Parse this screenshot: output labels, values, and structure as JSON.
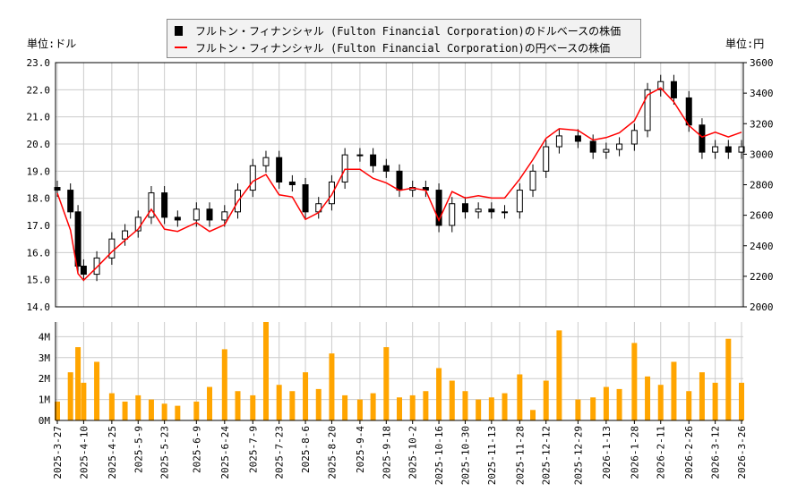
{
  "legend": {
    "usd": "フルトン・フィナンシャル (Fulton Financial Corporation)のドルベースの株価",
    "jpy": "フルトン・フィナンシャル (Fulton Financial Corporation)の円ベースの株価"
  },
  "units": {
    "left": "単位:ドル",
    "right": "単位:円"
  },
  "colors": {
    "candle": "#000000",
    "yen_line": "#ff0000",
    "volume": "#ffa500",
    "grid": "#cccccc"
  },
  "chart_data": [
    {
      "type": "candlestick+line",
      "ylim_left": [
        14,
        23
      ],
      "ylim_right": [
        2000,
        3600
      ],
      "yticks_left": [
        "14.0",
        "15.0",
        "16.0",
        "17.0",
        "18.0",
        "19.0",
        "20.0",
        "21.0",
        "22.0",
        "23.0"
      ],
      "yticks_right": [
        "2000",
        "2200",
        "2400",
        "2600",
        "2800",
        "3000",
        "3200",
        "3400",
        "3600"
      ],
      "grid": true,
      "dates": [
        "2025-3-27",
        "2025-4-3",
        "2025-4-7",
        "2025-4-10",
        "2025-4-17",
        "2025-4-25",
        "2025-5-2",
        "2025-5-9",
        "2025-5-16",
        "2025-5-23",
        "2025-5-30",
        "2025-6-9",
        "2025-6-16",
        "2025-6-24",
        "2025-7-1",
        "2025-7-9",
        "2025-7-16",
        "2025-7-23",
        "2025-7-30",
        "2025-8-6",
        "2025-8-13",
        "2025-8-20",
        "2025-8-27",
        "2025-9-4",
        "2025-9-11",
        "2025-9-18",
        "2025-9-25",
        "2025-10-2",
        "2025-10-9",
        "2025-10-16",
        "2025-10-23",
        "2025-10-30",
        "2025-11-6",
        "2025-11-13",
        "2025-11-20",
        "2025-11-28",
        "2025-12-5",
        "2025-12-12",
        "2025-12-19",
        "2025-12-29",
        "2026-1-6",
        "2026-1-13",
        "2026-1-20",
        "2026-1-28",
        "2026-2-4",
        "2026-2-11",
        "2026-2-18",
        "2026-2-26",
        "2026-3-5",
        "2026-3-12",
        "2026-3-19",
        "2026-3-26"
      ],
      "usd_close": [
        18.3,
        17.5,
        15.5,
        15.2,
        15.8,
        16.5,
        16.8,
        17.3,
        18.2,
        17.3,
        17.2,
        17.6,
        17.2,
        17.5,
        18.3,
        19.2,
        19.5,
        18.6,
        18.5,
        17.5,
        17.8,
        18.6,
        19.6,
        19.6,
        19.2,
        19.0,
        18.3,
        18.4,
        18.3,
        17.0,
        17.8,
        17.5,
        17.6,
        17.5,
        17.5,
        18.3,
        19.0,
        19.9,
        20.3,
        20.1,
        19.7,
        19.8,
        20.0,
        20.5,
        22.0,
        22.3,
        21.7,
        20.7,
        19.7,
        19.9,
        19.7,
        19.9
      ],
      "jpy_close": [
        2745,
        2503,
        2217,
        2174,
        2259,
        2360,
        2436,
        2509,
        2639,
        2509,
        2494,
        2552,
        2494,
        2538,
        2690,
        2822,
        2867,
        2734,
        2720,
        2573,
        2617,
        2734,
        2901,
        2901,
        2842,
        2812,
        2763,
        2778,
        2763,
        2567,
        2755,
        2713,
        2728,
        2713,
        2713,
        2837,
        2964,
        3104,
        3167,
        3156,
        3093,
        3109,
        3140,
        3219,
        3388,
        3434,
        3342,
        3188,
        3113,
        3144,
        3113,
        3144
      ],
      "xticks": [
        "2025-3-27",
        "2025-4-10",
        "2025-4-25",
        "2025-5-9",
        "2025-5-23",
        "2025-6-9",
        "2025-6-24",
        "2025-7-9",
        "2025-7-23",
        "2025-8-6",
        "2025-8-20",
        "2025-9-4",
        "2025-9-18",
        "2025-10-2",
        "2025-10-16",
        "2025-10-30",
        "2025-11-13",
        "2025-11-28",
        "2025-12-12",
        "2025-12-29",
        "2026-1-13",
        "2026-1-28",
        "2026-2-11",
        "2026-2-26",
        "2026-3-12",
        "2026-3-26"
      ]
    },
    {
      "type": "bar",
      "ylim": [
        0,
        4.7
      ],
      "yticks": [
        "0M",
        "1M",
        "2M",
        "3M",
        "4M"
      ],
      "volume_millions": [
        0.9,
        2.3,
        3.5,
        1.8,
        2.8,
        1.3,
        0.9,
        1.2,
        1.0,
        0.8,
        0.7,
        0.9,
        1.6,
        3.4,
        1.4,
        1.2,
        4.7,
        1.7,
        1.4,
        2.3,
        1.5,
        3.2,
        1.2,
        1.0,
        1.3,
        3.5,
        1.1,
        1.2,
        1.4,
        2.5,
        1.9,
        1.4,
        1.0,
        1.1,
        1.3,
        2.2,
        0.5,
        1.9,
        4.3,
        1.0,
        1.1,
        1.6,
        1.5,
        3.7,
        2.1,
        1.7,
        2.8,
        1.4,
        2.3,
        1.8,
        3.9,
        1.8
      ]
    }
  ]
}
